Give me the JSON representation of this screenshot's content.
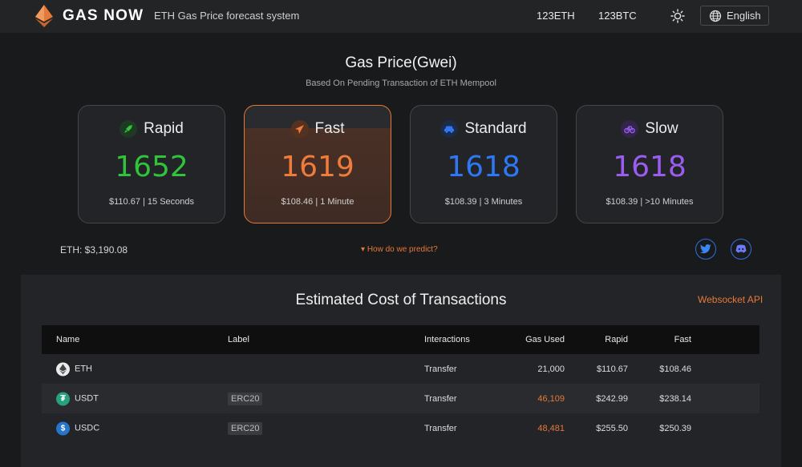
{
  "header": {
    "brand": "GAS NOW",
    "tagline": "ETH Gas Price forecast system",
    "nav_eth": "123ETH",
    "nav_btc": "123BTC",
    "language": "English"
  },
  "hero": {
    "title": "Gas Price(Gwei)",
    "subtitle": "Based On Pending Transaction of ETH Mempool"
  },
  "cards": [
    {
      "name": "Rapid",
      "value": "1652",
      "sub": "$110.67 | 15 Seconds",
      "color": "#2fc43a"
    },
    {
      "name": "Fast",
      "value": "1619",
      "sub": "$108.46 | 1 Minute",
      "color": "#f07c3c"
    },
    {
      "name": "Standard",
      "value": "1618",
      "sub": "$108.39 | 3 Minutes",
      "color": "#2e78f5"
    },
    {
      "name": "Slow",
      "value": "1618",
      "sub": "$108.39 | >10 Minutes",
      "color": "#9b5cf0"
    }
  ],
  "eth_price": "ETH: $3,190.08",
  "predict_link": "How do we predict?",
  "section": {
    "title": "Estimated Cost of Transactions",
    "ws_link": "Websocket API"
  },
  "table": {
    "headers": {
      "name": "Name",
      "label": "Label",
      "interactions": "Interactions",
      "gas": "Gas Used",
      "rapid": "Rapid",
      "fast": "Fast"
    },
    "rows": [
      {
        "name": "ETH",
        "label": "",
        "interactions": "Transfer",
        "gas": "21,000",
        "rapid": "$110.67",
        "fast": "$108.46"
      },
      {
        "name": "USDT",
        "label": "ERC20",
        "interactions": "Transfer",
        "gas": "46,109",
        "rapid": "$242.99",
        "fast": "$238.14"
      },
      {
        "name": "USDC",
        "label": "ERC20",
        "interactions": "Transfer",
        "gas": "48,481",
        "rapid": "$255.50",
        "fast": "$250.39"
      }
    ]
  }
}
